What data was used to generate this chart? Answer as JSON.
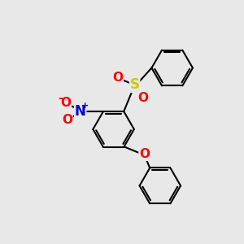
{
  "background_color": "#e8e8e8",
  "bond_color": "#000000",
  "bond_width": 1.5,
  "S_color": "#cccc00",
  "O_color": "#ff0000",
  "N_color": "#0000cc",
  "fig_width": 3.0,
  "fig_height": 3.0,
  "dpi": 100,
  "xlim": [
    0,
    10
  ],
  "ylim": [
    0,
    10
  ]
}
